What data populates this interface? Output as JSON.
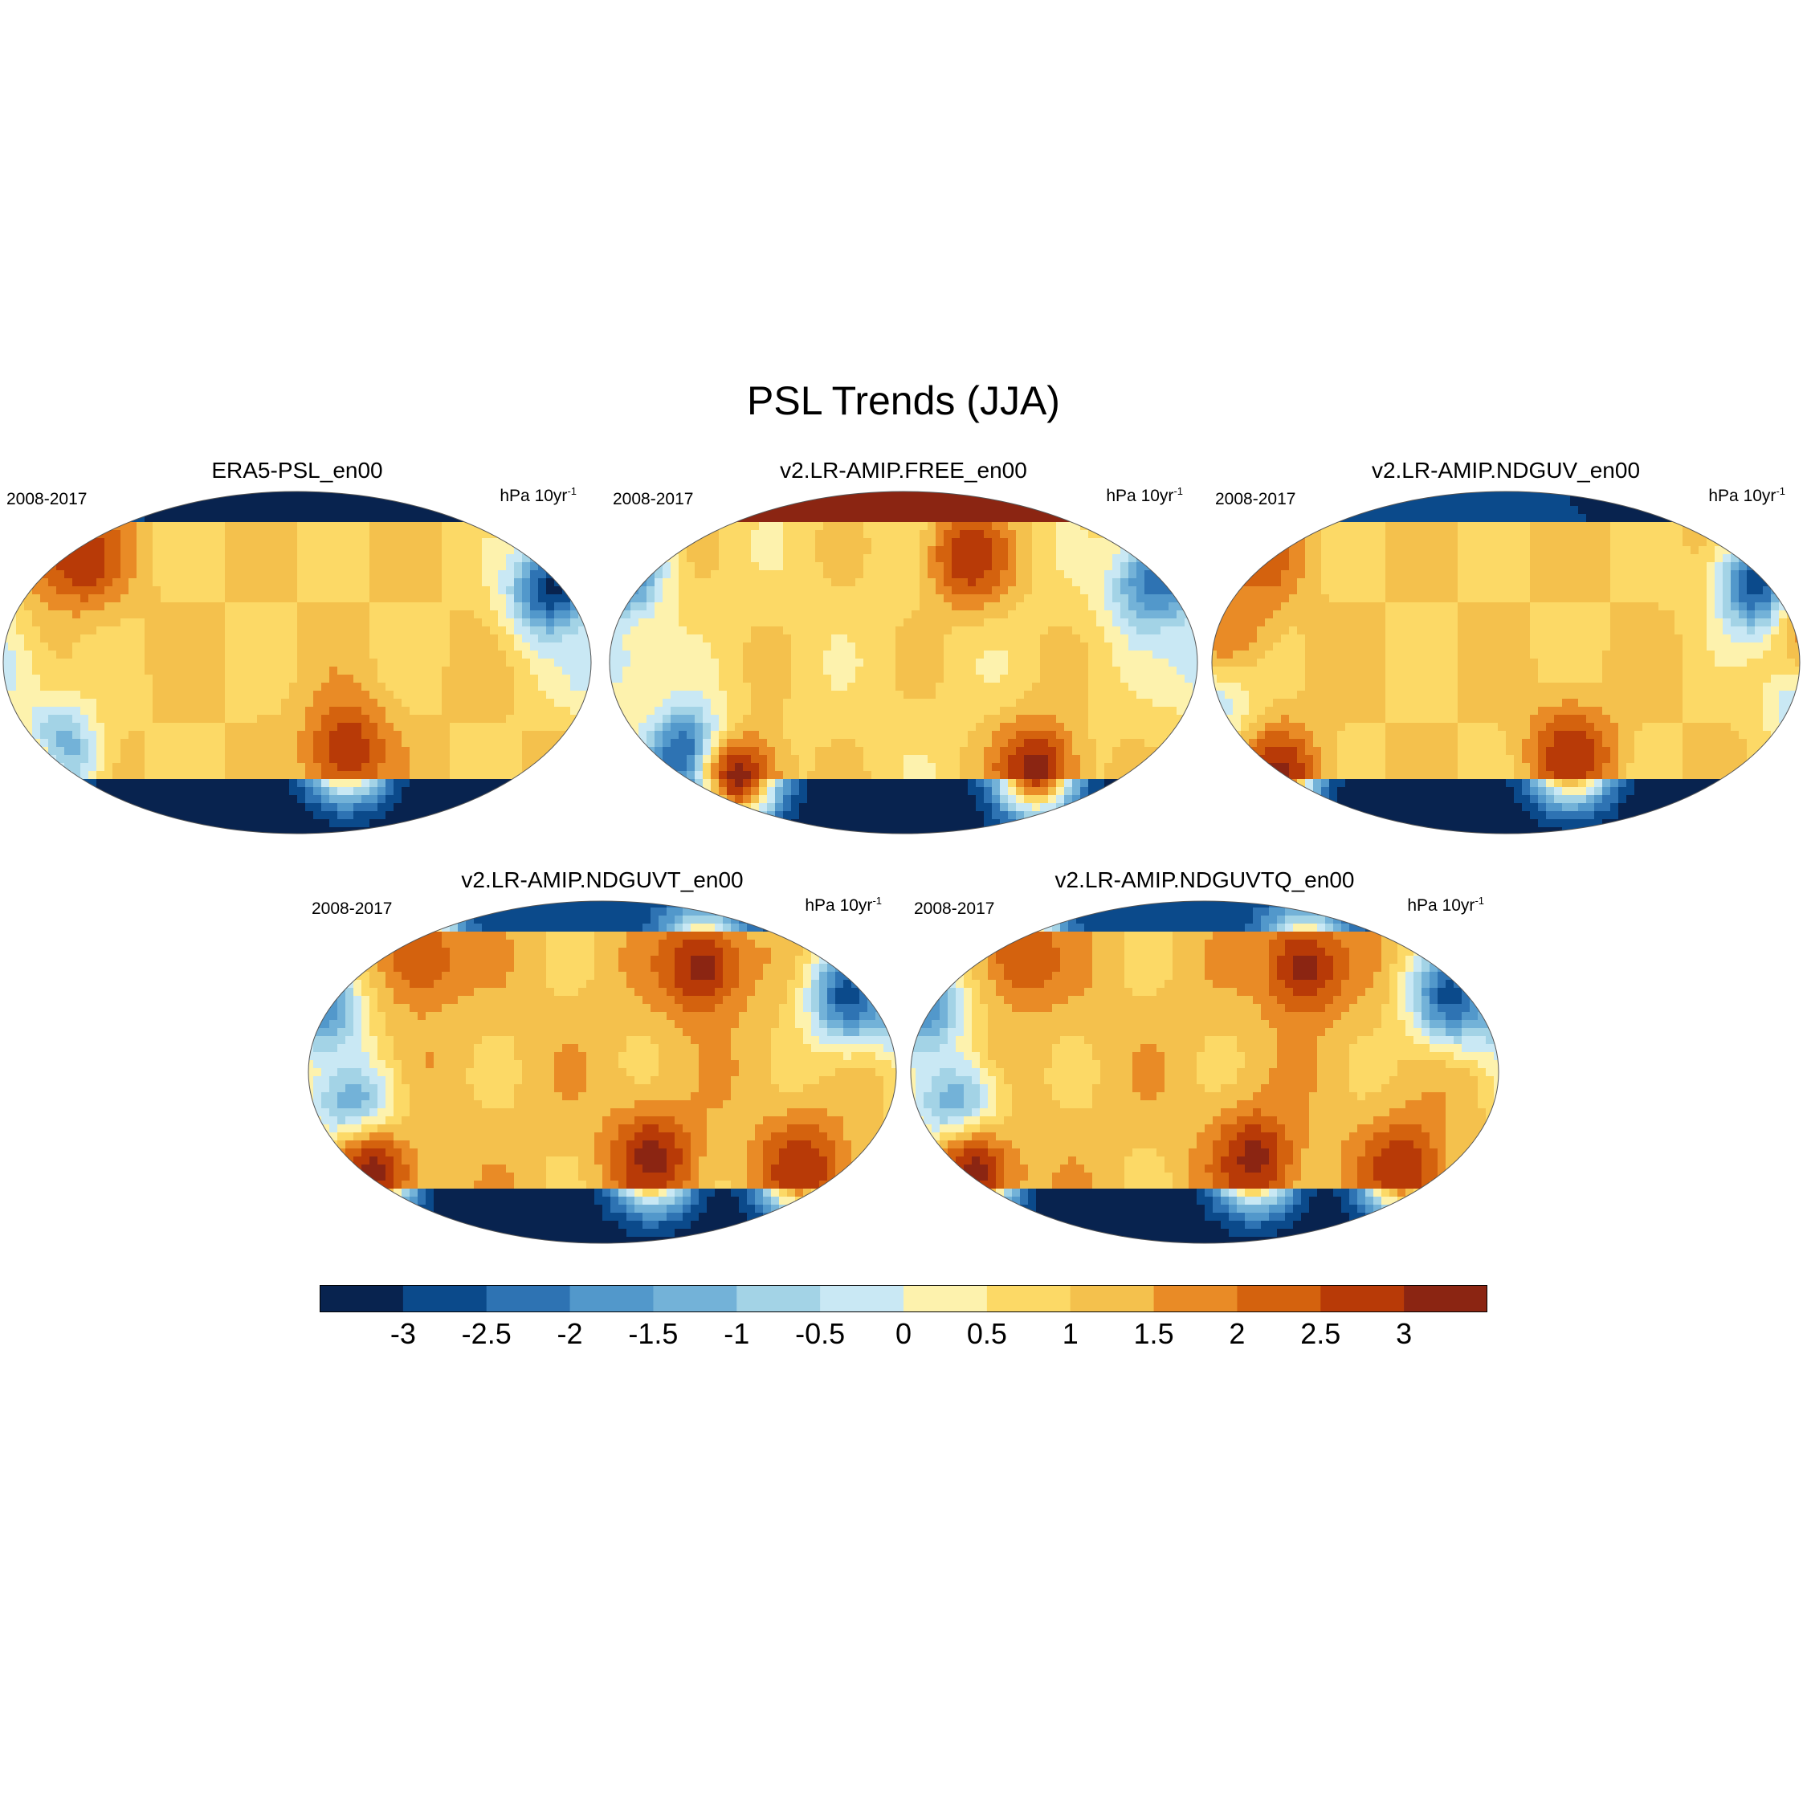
{
  "title": "PSL Trends (JJA)",
  "panels": [
    {
      "id": "era5",
      "title": "ERA5-PSL_en00",
      "period": "2008-2017",
      "units": "hPa 10yr",
      "units_sup": "-1",
      "pattern": {
        "arctic": -3.5,
        "antarctic": -3.5,
        "background": 1.0,
        "features": [
          {
            "lon": -170,
            "lat": 58,
            "value": 2.5
          },
          {
            "lon": 155,
            "lat": 38,
            "value": -3.2
          },
          {
            "lon": -150,
            "lat": -50,
            "value": -3.2
          },
          {
            "lon": 30,
            "lat": -45,
            "value": 3.0
          },
          {
            "lon": 180,
            "lat": -5,
            "value": -0.3
          },
          {
            "lon": -130,
            "lat": 55,
            "value": 3.0
          },
          {
            "lon": -165,
            "lat": -63,
            "value": 3.0
          }
        ]
      }
    },
    {
      "id": "free",
      "title": "v2.LR-AMIP.FREE_en00",
      "period": "2008-2017",
      "units": "hPa 10yr",
      "units_sup": "-1",
      "pattern": {
        "arctic": 3.5,
        "antarctic": -3.5,
        "background": 0.8,
        "features": [
          {
            "lon": 150,
            "lat": 40,
            "value": -2.0
          },
          {
            "lon": -175,
            "lat": 50,
            "value": -3.5
          },
          {
            "lon": -130,
            "lat": -50,
            "value": -3.5
          },
          {
            "lon": 80,
            "lat": -55,
            "value": 3.2
          },
          {
            "lon": -100,
            "lat": -60,
            "value": 3.2
          },
          {
            "lon": 40,
            "lat": 55,
            "value": 3.0
          },
          {
            "lon": 180,
            "lat": 0,
            "value": -0.3
          }
        ]
      }
    },
    {
      "id": "ndguv",
      "title": "v2.LR-AMIP.NDGUV_en00",
      "period": "2008-2017",
      "units": "hPa 10yr",
      "units_sup": "-1",
      "pattern": {
        "arctic": -3.0,
        "antarctic": -3.5,
        "background": 1.0,
        "features": [
          {
            "lon": 155,
            "lat": 40,
            "value": -3.2
          },
          {
            "lon": -150,
            "lat": 55,
            "value": 2.5
          },
          {
            "lon": -140,
            "lat": -58,
            "value": 3.2
          },
          {
            "lon": 40,
            "lat": -48,
            "value": 3.0
          },
          {
            "lon": 180,
            "lat": -20,
            "value": -0.5
          },
          {
            "lon": -170,
            "lat": 20,
            "value": 2.0
          }
        ]
      }
    },
    {
      "id": "ndguvt",
      "title": "v2.LR-AMIP.NDGUVT_en00",
      "period": "2008-2017",
      "units": "hPa 10yr",
      "units_sup": "-1",
      "pattern": {
        "arctic": -3.0,
        "antarctic": -3.5,
        "background": 1.2,
        "features": [
          {
            "lon": 60,
            "lat": 55,
            "value": 3.2
          },
          {
            "lon": 150,
            "lat": 40,
            "value": -2.8
          },
          {
            "lon": -170,
            "lat": 35,
            "value": -2.0
          },
          {
            "lon": -150,
            "lat": -20,
            "value": -1.8
          },
          {
            "lon": -140,
            "lat": -52,
            "value": 3.2
          },
          {
            "lon": 30,
            "lat": -45,
            "value": 3.2
          },
          {
            "lon": 120,
            "lat": -50,
            "value": 3.0
          },
          {
            "lon": -110,
            "lat": 60,
            "value": 2.5
          }
        ]
      }
    },
    {
      "id": "ndguvtq",
      "title": "v2.LR-AMIP.NDGUVTQ_en00",
      "period": "2008-2017",
      "units": "hPa 10yr",
      "units_sup": "-1",
      "pattern": {
        "arctic": -3.0,
        "antarctic": -3.5,
        "background": 1.2,
        "features": [
          {
            "lon": 60,
            "lat": 55,
            "value": 3.2
          },
          {
            "lon": 150,
            "lat": 40,
            "value": -2.8
          },
          {
            "lon": -170,
            "lat": 35,
            "value": -2.0
          },
          {
            "lon": -150,
            "lat": -20,
            "value": -1.8
          },
          {
            "lon": -140,
            "lat": -52,
            "value": 3.2
          },
          {
            "lon": 30,
            "lat": -45,
            "value": 3.2
          },
          {
            "lon": 120,
            "lat": -50,
            "value": 3.0
          },
          {
            "lon": -110,
            "lat": 60,
            "value": 2.5
          }
        ]
      }
    }
  ],
  "colorbar": {
    "labels": [
      "-3",
      "-2.5",
      "-2",
      "-1.5",
      "-1",
      "-0.5",
      "0",
      "0.5",
      "1",
      "1.5",
      "2",
      "2.5",
      "3"
    ],
    "levels": [
      -3,
      -2.5,
      -2,
      -1.5,
      -1,
      -0.5,
      0,
      0.5,
      1,
      1.5,
      2,
      2.5,
      3
    ],
    "colors": [
      "#08234f",
      "#0b4a8b",
      "#2e73b3",
      "#5298cb",
      "#73b2d8",
      "#a3d3e6",
      "#c9e8f4",
      "#fdf2ad",
      "#fcd966",
      "#f4c14d",
      "#e98b26",
      "#d4620e",
      "#b83a07",
      "#8b2512"
    ]
  },
  "chart_data": {
    "type": "heatmap",
    "title": "PSL Trends (JJA)",
    "projection": "Robinson (global, centred 180)",
    "variable": "PSL trend",
    "units": "hPa 10yr-1",
    "period": "2008-2017",
    "season": "JJA",
    "panels": [
      "ERA5-PSL_en00",
      "v2.LR-AMIP.FREE_en00",
      "v2.LR-AMIP.NDGUV_en00",
      "v2.LR-AMIP.NDGUVT_en00",
      "v2.LR-AMIP.NDGUVTQ_en00"
    ],
    "levels": [
      -3,
      -2.5,
      -2,
      -1.5,
      -1,
      -0.5,
      0,
      0.5,
      1,
      1.5,
      2,
      2.5,
      3
    ],
    "colorbar_range": [
      -3.5,
      3.5
    ]
  }
}
